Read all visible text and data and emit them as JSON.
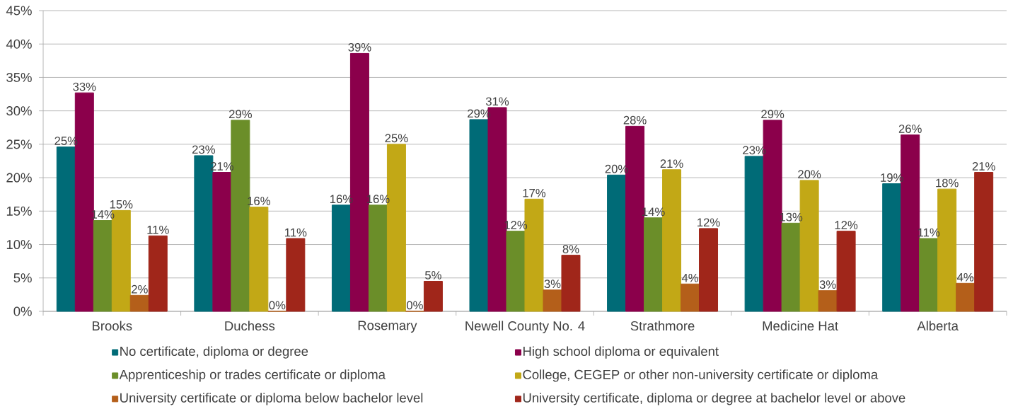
{
  "chart_data": {
    "type": "bar",
    "categories": [
      "Brooks",
      "Duchess",
      "Rosemary",
      "Newell County No. 4",
      "Strathmore",
      "Medicine Hat",
      "Alberta"
    ],
    "series": [
      {
        "name": "No certificate, diploma or degree",
        "color": "#006b77",
        "values": [
          24.6,
          23.3,
          15.9,
          28.7,
          20.4,
          23.2,
          19.1
        ],
        "value_labels": [
          "25%",
          "23%",
          "16%",
          "29%",
          "20%",
          "23%",
          "19%"
        ]
      },
      {
        "name": "High school diploma or equivalent",
        "color": "#8b004b",
        "values": [
          32.7,
          20.8,
          38.6,
          30.5,
          27.7,
          28.6,
          26.4
        ],
        "value_labels": [
          "33%",
          "21%",
          "39%",
          "31%",
          "28%",
          "29%",
          "26%"
        ]
      },
      {
        "name": "Apprenticeship or trades certificate or diploma",
        "color": "#6b8e29",
        "values": [
          13.6,
          28.6,
          15.9,
          12.0,
          14.0,
          13.2,
          10.9
        ],
        "value_labels": [
          "14%",
          "29%",
          "16%",
          "12%",
          "14%",
          "13%",
          "11%"
        ]
      },
      {
        "name": "College, CEGEP or other non-university certificate or diploma",
        "color": "#c2a816",
        "values": [
          15.1,
          15.6,
          25.0,
          16.8,
          21.2,
          19.6,
          18.3
        ],
        "value_labels": [
          "15%",
          "16%",
          "25%",
          "17%",
          "21%",
          "20%",
          "18%"
        ]
      },
      {
        "name": "University certificate or diploma below bachelor level",
        "color": "#b45f1a",
        "values": [
          2.4,
          0,
          0,
          3.2,
          4.1,
          3.1,
          4.2
        ],
        "value_labels": [
          "2%",
          "0%",
          "0%",
          "3%",
          "4%",
          "3%",
          "4%"
        ]
      },
      {
        "name": "University certificate, diploma or degree at bachelor level or above",
        "color": "#a0261a",
        "values": [
          11.3,
          10.9,
          4.5,
          8.4,
          12.4,
          12.0,
          20.8
        ],
        "value_labels": [
          "11%",
          "11%",
          "5%",
          "8%",
          "12%",
          "12%",
          "21%"
        ]
      }
    ],
    "ylim": [
      0,
      45
    ],
    "yticks": [
      {
        "value": 0,
        "label": "0%"
      },
      {
        "value": 5,
        "label": "5%"
      },
      {
        "value": 10,
        "label": "10%"
      },
      {
        "value": 15,
        "label": "15%"
      },
      {
        "value": 20,
        "label": "20%"
      },
      {
        "value": 25,
        "label": "25%"
      },
      {
        "value": 30,
        "label": "30%"
      },
      {
        "value": 35,
        "label": "35%"
      },
      {
        "value": 40,
        "label": "40%"
      },
      {
        "value": 45,
        "label": "45%"
      }
    ],
    "grid": "y",
    "legend": "bottom"
  }
}
